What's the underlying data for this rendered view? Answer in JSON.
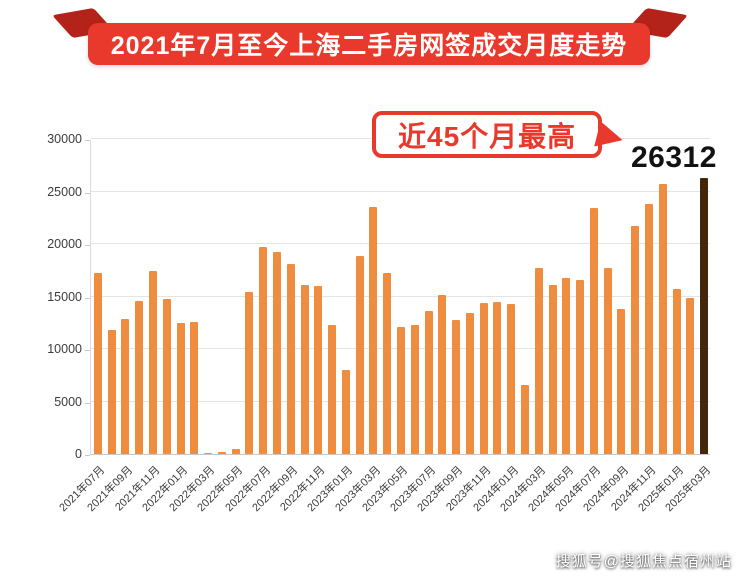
{
  "banner": {
    "title": "2021年7月至今上海二手房网签成交月度走势"
  },
  "annotation": {
    "callout_text": "近45个月最高",
    "peak_value_label": "26312"
  },
  "watermark": {
    "text": "搜狐号@搜狐焦点宿州站"
  },
  "colors": {
    "banner_bg": "#e8392c",
    "banner_fold": "#b3231a",
    "bar": "#ee8c3f",
    "highlight_bar": "#44260a",
    "callout": "#e8392c",
    "grid": "#e4e4e4",
    "value_text": "#121212"
  },
  "chart_data": {
    "type": "bar",
    "title": "2021年7月至今上海二手房网签成交月度走势",
    "xlabel": "",
    "ylabel": "",
    "ylim": [
      0,
      30000
    ],
    "yticks": [
      0,
      5000,
      10000,
      15000,
      20000,
      25000,
      30000
    ],
    "grid": true,
    "legend": false,
    "x_tick_step": 2,
    "highlight_index": 44,
    "x": [
      "2021年07月",
      "2021年08月",
      "2021年09月",
      "2021年10月",
      "2021年11月",
      "2021年12月",
      "2022年01月",
      "2022年02月",
      "2022年03月",
      "2022年04月",
      "2022年05月",
      "2022年06月",
      "2022年07月",
      "2022年08月",
      "2022年09月",
      "2022年10月",
      "2022年11月",
      "2022年12月",
      "2023年01月",
      "2023年02月",
      "2023年03月",
      "2023年04月",
      "2023年05月",
      "2023年06月",
      "2023年07月",
      "2023年08月",
      "2023年09月",
      "2023年10月",
      "2023年11月",
      "2023年12月",
      "2024年01月",
      "2024年02月",
      "2024年03月",
      "2024年04月",
      "2024年05月",
      "2024年06月",
      "2024年07月",
      "2024年08月",
      "2024年09月",
      "2024年10月",
      "2024年11月",
      "2024年12月",
      "2025年01月",
      "2025年02月",
      "2025年03月"
    ],
    "values": [
      17200,
      11800,
      12900,
      14600,
      17400,
      14800,
      12500,
      12600,
      100,
      200,
      500,
      15400,
      19700,
      19200,
      18100,
      16100,
      16000,
      12300,
      8000,
      18900,
      23500,
      17200,
      12100,
      12300,
      13600,
      15100,
      12800,
      13400,
      14400,
      14500,
      14300,
      6600,
      17700,
      16100,
      16800,
      16600,
      23400,
      17700,
      13800,
      21700,
      23800,
      25700,
      15700,
      14900,
      26312
    ],
    "annotations": [
      {
        "text": "近45个月最高",
        "value": 26312,
        "target": "2025年03月"
      }
    ]
  }
}
